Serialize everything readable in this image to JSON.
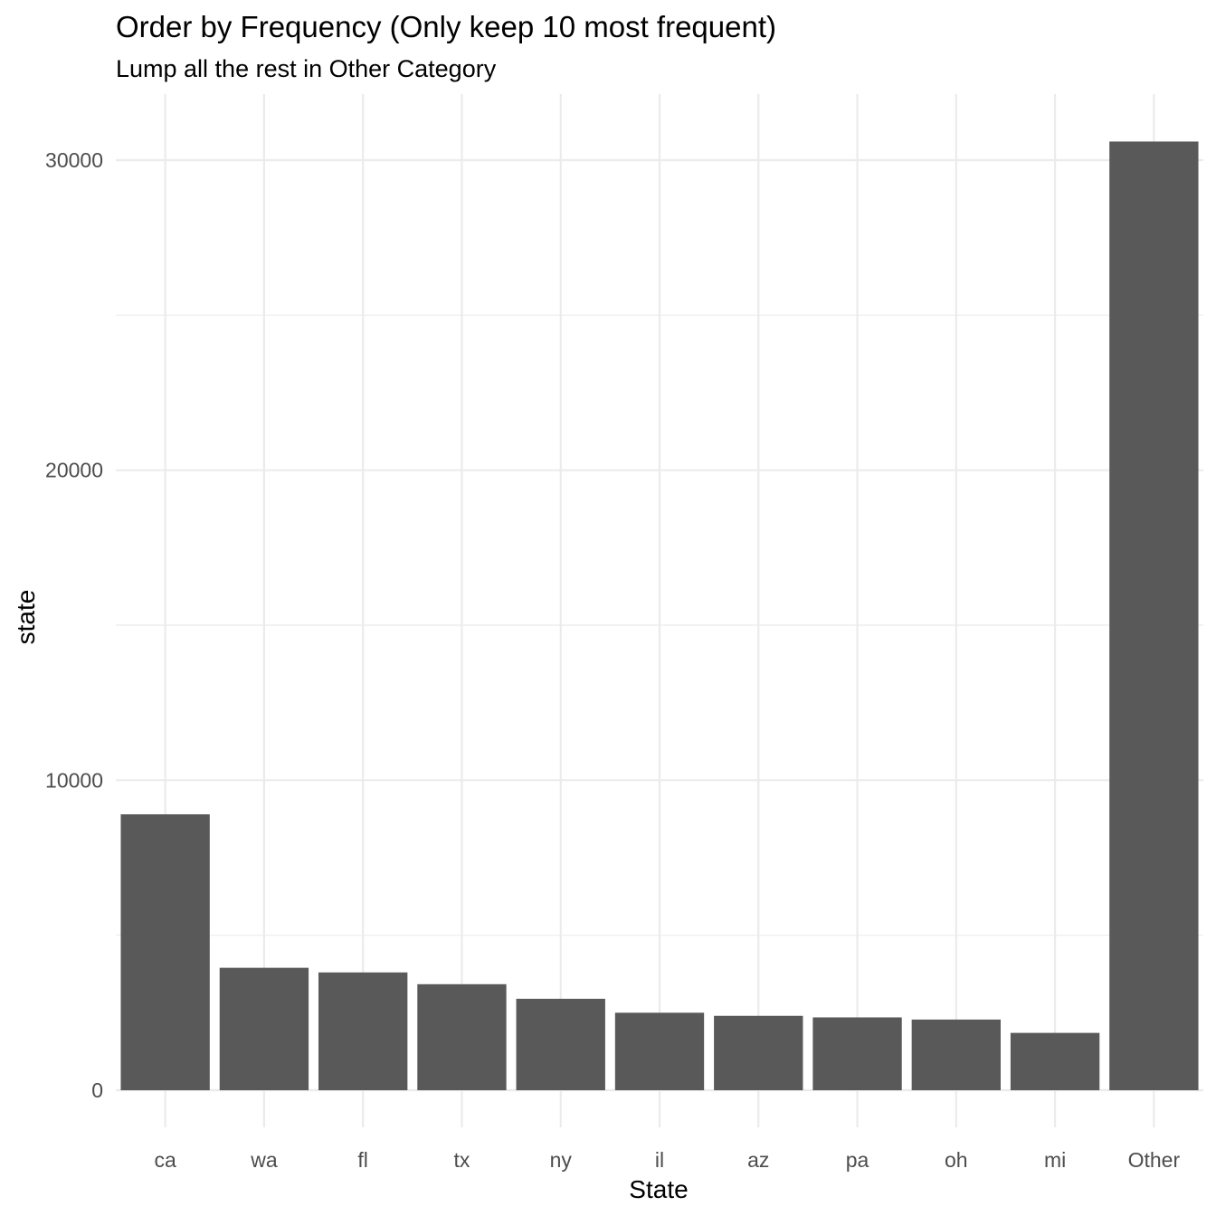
{
  "chart_data": {
    "type": "bar",
    "title": "Order by Frequency (Only keep 10 most frequent)",
    "subtitle": "Lump all the rest in Other Category",
    "xlabel": "State",
    "ylabel": "state",
    "categories": [
      "ca",
      "wa",
      "fl",
      "tx",
      "ny",
      "il",
      "az",
      "pa",
      "oh",
      "mi",
      "Other"
    ],
    "values": [
      8900,
      3950,
      3800,
      3420,
      2950,
      2500,
      2400,
      2350,
      2280,
      1850,
      30600
    ],
    "ylim": [
      0,
      32200
    ],
    "yticks": [
      0,
      10000,
      20000,
      30000
    ],
    "ytick_labels": [
      "0",
      "10000",
      "20000",
      "30000"
    ],
    "grid": true,
    "bar_color": "#595959",
    "grid_color": "#ebebeb"
  }
}
